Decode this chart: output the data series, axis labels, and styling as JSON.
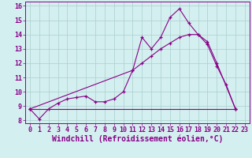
{
  "xlabel": "Windchill (Refroidissement éolien,°C)",
  "bg_color": "#d4efef",
  "grid_color": "#aacece",
  "line_color": "#880088",
  "xlim": [
    -0.5,
    23.5
  ],
  "ylim": [
    7.8,
    16.3
  ],
  "yticks": [
    8,
    9,
    10,
    11,
    12,
    13,
    14,
    15,
    16
  ],
  "xticks": [
    0,
    1,
    2,
    3,
    4,
    5,
    6,
    7,
    8,
    9,
    10,
    11,
    12,
    13,
    14,
    15,
    16,
    17,
    18,
    19,
    20,
    21,
    22,
    23
  ],
  "line1_x": [
    0,
    1,
    2,
    3,
    4,
    5,
    6,
    7,
    8,
    9,
    10,
    11,
    12,
    13,
    14,
    15,
    16,
    17,
    18,
    19,
    20,
    21,
    22
  ],
  "line1_y": [
    8.8,
    8.1,
    8.8,
    9.2,
    9.5,
    9.6,
    9.7,
    9.3,
    9.3,
    9.5,
    10.0,
    11.5,
    13.8,
    13.0,
    13.8,
    15.2,
    15.8,
    14.8,
    14.0,
    13.3,
    11.8,
    10.5,
    8.8
  ],
  "line2_x": [
    0,
    11,
    12,
    13,
    14,
    15,
    16,
    17,
    18,
    19,
    20,
    22
  ],
  "line2_y": [
    8.8,
    11.5,
    12.0,
    12.5,
    13.0,
    13.4,
    13.8,
    14.0,
    14.0,
    13.5,
    12.0,
    8.8
  ],
  "line3_x": [
    0,
    22
  ],
  "line3_y": [
    8.8,
    8.8
  ],
  "xlabel_fontsize": 7.0,
  "tick_fontsize": 6.0,
  "figwidth": 3.2,
  "figheight": 2.0,
  "dpi": 100
}
